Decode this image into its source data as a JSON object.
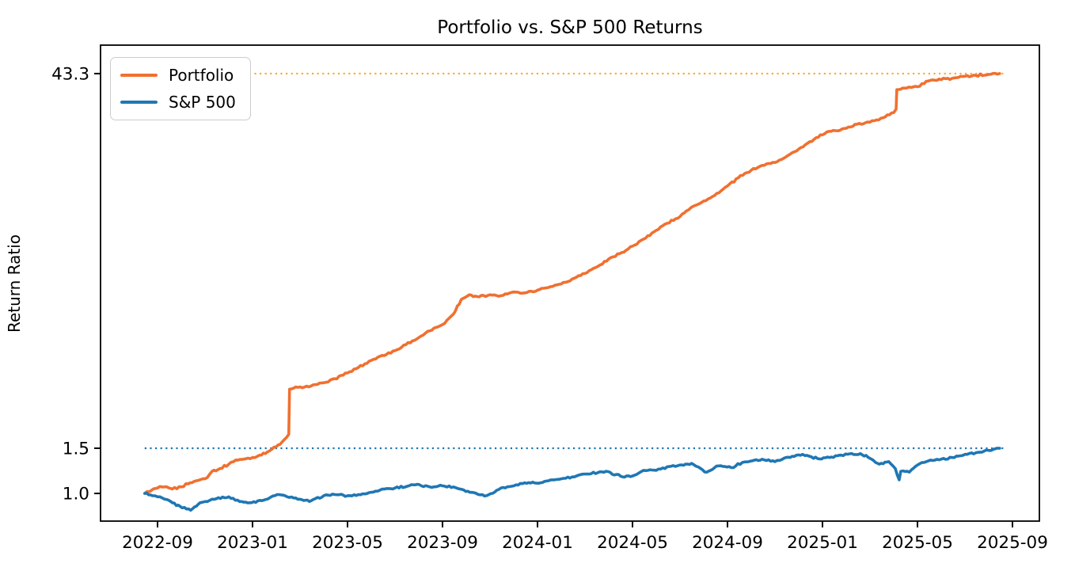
{
  "chart_data": {
    "type": "line",
    "title": "Portfolio vs. S&P 500 Returns",
    "xlabel": "",
    "ylabel": "Return Ratio",
    "y_scale": "log",
    "grid": false,
    "legend_position": "upper left",
    "y_range": [
      0.78,
      55.9
    ],
    "y_ticks": [
      {
        "value": 43.3,
        "label": "43.3"
      },
      {
        "value": 1.5,
        "label": "1.5"
      },
      {
        "value": 1.0,
        "label": "1.0"
      }
    ],
    "x_ticks": [
      "2022-09",
      "2023-01",
      "2023-05",
      "2023-09",
      "2024-01",
      "2024-05",
      "2024-09",
      "2025-01",
      "2025-05",
      "2025-09"
    ],
    "x_range": [
      "2022-06-19",
      "2025-10-05"
    ],
    "reference_lines": [
      {
        "name": "portfolio-final-value",
        "value": 43.3,
        "style": "dotted",
        "color": "#ffa726"
      },
      {
        "name": "sp500-final-value",
        "value": 1.5,
        "style": "dotted",
        "color": "#1f77b4"
      }
    ],
    "series": [
      {
        "name": "Portfolio",
        "color": "#f07030",
        "points": [
          [
            "2022-08-15",
            1.0
          ],
          [
            "2022-08-24",
            1.03
          ],
          [
            "2022-09-01",
            1.05
          ],
          [
            "2022-09-10",
            1.06
          ],
          [
            "2022-09-20",
            1.04
          ],
          [
            "2022-10-01",
            1.06
          ],
          [
            "2022-10-10",
            1.09
          ],
          [
            "2022-10-20",
            1.12
          ],
          [
            "2022-11-01",
            1.14
          ],
          [
            "2022-11-10",
            1.22
          ],
          [
            "2022-11-20",
            1.25
          ],
          [
            "2022-12-01",
            1.3
          ],
          [
            "2022-12-10",
            1.35
          ],
          [
            "2022-12-20",
            1.36
          ],
          [
            "2023-01-01",
            1.38
          ],
          [
            "2023-01-10",
            1.41
          ],
          [
            "2023-01-20",
            1.45
          ],
          [
            "2023-02-01",
            1.52
          ],
          [
            "2023-02-08",
            1.58
          ],
          [
            "2023-02-14",
            1.65
          ],
          [
            "2023-02-17",
            1.7
          ],
          [
            "2023-02-18",
            2.55
          ],
          [
            "2023-03-01",
            2.6
          ],
          [
            "2023-03-15",
            2.62
          ],
          [
            "2023-04-01",
            2.7
          ],
          [
            "2023-04-15",
            2.8
          ],
          [
            "2023-05-01",
            2.95
          ],
          [
            "2023-05-15",
            3.1
          ],
          [
            "2023-06-01",
            3.3
          ],
          [
            "2023-06-15",
            3.45
          ],
          [
            "2023-07-01",
            3.6
          ],
          [
            "2023-07-15",
            3.8
          ],
          [
            "2023-08-01",
            4.05
          ],
          [
            "2023-08-15",
            4.3
          ],
          [
            "2023-09-01",
            4.55
          ],
          [
            "2023-09-15",
            5.0
          ],
          [
            "2023-09-25",
            5.7
          ],
          [
            "2023-10-05",
            5.95
          ],
          [
            "2023-10-15",
            5.85
          ],
          [
            "2023-11-01",
            5.95
          ],
          [
            "2023-11-15",
            5.9
          ],
          [
            "2023-12-01",
            6.1
          ],
          [
            "2023-12-15",
            6.05
          ],
          [
            "2024-01-01",
            6.2
          ],
          [
            "2024-01-15",
            6.35
          ],
          [
            "2024-02-01",
            6.55
          ],
          [
            "2024-02-15",
            6.85
          ],
          [
            "2024-03-01",
            7.2
          ],
          [
            "2024-03-15",
            7.6
          ],
          [
            "2024-04-01",
            8.2
          ],
          [
            "2024-04-15",
            8.6
          ],
          [
            "2024-05-01",
            9.2
          ],
          [
            "2024-05-15",
            9.8
          ],
          [
            "2024-06-01",
            10.6
          ],
          [
            "2024-06-15",
            11.3
          ],
          [
            "2024-07-01",
            12.0
          ],
          [
            "2024-07-15",
            13.0
          ],
          [
            "2024-08-01",
            13.8
          ],
          [
            "2024-08-15",
            14.5
          ],
          [
            "2024-09-01",
            15.8
          ],
          [
            "2024-09-15",
            17.0
          ],
          [
            "2024-10-01",
            18.2
          ],
          [
            "2024-10-15",
            19.0
          ],
          [
            "2024-11-01",
            19.5
          ],
          [
            "2024-11-15",
            20.5
          ],
          [
            "2024-12-01",
            22.0
          ],
          [
            "2024-12-15",
            23.5
          ],
          [
            "2025-01-01",
            25.0
          ],
          [
            "2025-01-15",
            26.0
          ],
          [
            "2025-02-01",
            26.5
          ],
          [
            "2025-02-15",
            27.5
          ],
          [
            "2025-03-01",
            28.0
          ],
          [
            "2025-03-15",
            29.0
          ],
          [
            "2025-04-01",
            30.5
          ],
          [
            "2025-04-04",
            31.5
          ],
          [
            "2025-04-05",
            37.5
          ],
          [
            "2025-04-15",
            38.0
          ],
          [
            "2025-05-01",
            38.5
          ],
          [
            "2025-05-15",
            40.5
          ],
          [
            "2025-06-01",
            41.0
          ],
          [
            "2025-06-15",
            41.5
          ],
          [
            "2025-07-01",
            42.3
          ],
          [
            "2025-07-15",
            42.6
          ],
          [
            "2025-08-01",
            43.0
          ],
          [
            "2025-08-15",
            43.3
          ]
        ]
      },
      {
        "name": "S&P 500",
        "color": "#1f77b4",
        "points": [
          [
            "2022-08-15",
            1.0
          ],
          [
            "2022-08-25",
            0.98
          ],
          [
            "2022-09-01",
            0.97
          ],
          [
            "2022-09-10",
            0.95
          ],
          [
            "2022-09-20",
            0.92
          ],
          [
            "2022-09-30",
            0.89
          ],
          [
            "2022-10-13",
            0.86
          ],
          [
            "2022-10-25",
            0.92
          ],
          [
            "2022-11-01",
            0.93
          ],
          [
            "2022-11-10",
            0.95
          ],
          [
            "2022-12-01",
            0.97
          ],
          [
            "2022-12-15",
            0.93
          ],
          [
            "2022-12-28",
            0.92
          ],
          [
            "2023-01-10",
            0.94
          ],
          [
            "2023-01-20",
            0.95
          ],
          [
            "2023-02-02",
            0.99
          ],
          [
            "2023-02-15",
            0.97
          ],
          [
            "2023-03-01",
            0.95
          ],
          [
            "2023-03-13",
            0.93
          ],
          [
            "2023-04-01",
            0.98
          ],
          [
            "2023-04-15",
            0.99
          ],
          [
            "2023-05-01",
            0.98
          ],
          [
            "2023-05-15",
            0.99
          ],
          [
            "2023-06-01",
            1.01
          ],
          [
            "2023-06-15",
            1.04
          ],
          [
            "2023-07-01",
            1.05
          ],
          [
            "2023-07-27",
            1.08
          ],
          [
            "2023-08-15",
            1.06
          ],
          [
            "2023-09-01",
            1.07
          ],
          [
            "2023-09-15",
            1.06
          ],
          [
            "2023-10-03",
            1.02
          ],
          [
            "2023-10-27",
            0.98
          ],
          [
            "2023-11-15",
            1.05
          ],
          [
            "2023-12-01",
            1.07
          ],
          [
            "2023-12-15",
            1.1
          ],
          [
            "2024-01-05",
            1.1
          ],
          [
            "2024-01-20",
            1.13
          ],
          [
            "2024-02-01",
            1.14
          ],
          [
            "2024-02-15",
            1.16
          ],
          [
            "2024-03-01",
            1.19
          ],
          [
            "2024-03-28",
            1.22
          ],
          [
            "2024-04-19",
            1.16
          ],
          [
            "2024-05-01",
            1.17
          ],
          [
            "2024-05-15",
            1.23
          ],
          [
            "2024-06-01",
            1.23
          ],
          [
            "2024-06-15",
            1.27
          ],
          [
            "2024-07-16",
            1.31
          ],
          [
            "2024-08-05",
            1.21
          ],
          [
            "2024-08-20",
            1.28
          ],
          [
            "2024-09-06",
            1.26
          ],
          [
            "2024-09-20",
            1.32
          ],
          [
            "2024-10-15",
            1.36
          ],
          [
            "2024-11-01",
            1.33
          ],
          [
            "2024-11-15",
            1.38
          ],
          [
            "2024-12-06",
            1.42
          ],
          [
            "2024-12-20",
            1.37
          ],
          [
            "2025-01-10",
            1.38
          ],
          [
            "2025-01-25",
            1.41
          ],
          [
            "2025-02-19",
            1.43
          ],
          [
            "2025-03-01",
            1.37
          ],
          [
            "2025-03-13",
            1.3
          ],
          [
            "2025-03-25",
            1.33
          ],
          [
            "2025-04-03",
            1.25
          ],
          [
            "2025-04-08",
            1.13
          ],
          [
            "2025-04-10",
            1.22
          ],
          [
            "2025-04-21",
            1.21
          ],
          [
            "2025-05-01",
            1.29
          ],
          [
            "2025-05-15",
            1.34
          ],
          [
            "2025-06-01",
            1.36
          ],
          [
            "2025-06-15",
            1.38
          ],
          [
            "2025-07-01",
            1.42
          ],
          [
            "2025-07-15",
            1.44
          ],
          [
            "2025-08-01",
            1.47
          ],
          [
            "2025-08-15",
            1.5
          ]
        ]
      }
    ]
  }
}
